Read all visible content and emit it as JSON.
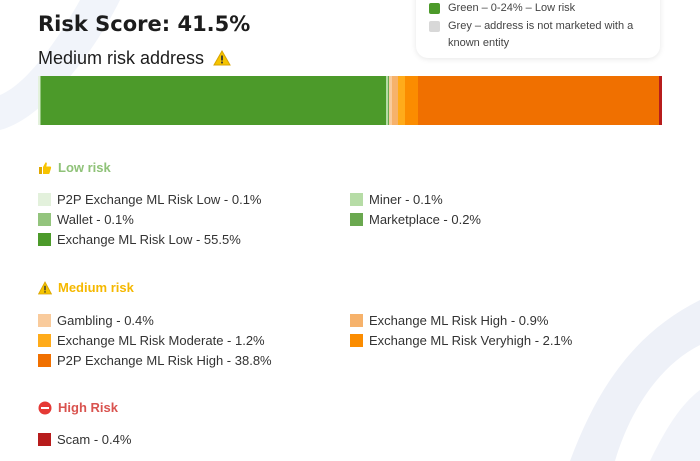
{
  "header": {
    "risk_score": "Risk Score: 41.5%",
    "risk_level": "Medium risk address"
  },
  "legend": [
    {
      "color": "#4c9a2a",
      "label": "Green – 0-24% – Low risk"
    },
    {
      "color": "#d8d8d8",
      "label": "Grey – address is not marketed with a known entity"
    }
  ],
  "risk_bar": [
    {
      "name": "P2P Exchange ML Risk Low",
      "percent": 0.1,
      "color": "#e3f1dc"
    },
    {
      "name": "Wallet",
      "percent": 0.1,
      "color": "#93c47d"
    },
    {
      "name": "Exchange ML Risk Low",
      "percent": 55.5,
      "color": "#4c9a2a"
    },
    {
      "name": "Miner",
      "percent": 0.1,
      "color": "#b6dca6"
    },
    {
      "name": "Marketplace",
      "percent": 0.2,
      "color": "#6aa84f"
    },
    {
      "name": "Gambling",
      "percent": 0.4,
      "color": "#f9cb9c"
    },
    {
      "name": "Exchange ML Risk High",
      "percent": 0.9,
      "color": "#f6b26b"
    },
    {
      "name": "Exchange ML Risk Moderate",
      "percent": 1.2,
      "color": "#ffab1a"
    },
    {
      "name": "Exchange ML Risk Veryhigh",
      "percent": 2.1,
      "color": "#fb8c00"
    },
    {
      "name": "P2P Exchange ML Risk High",
      "percent": 38.8,
      "color": "#f07000"
    },
    {
      "name": "Scam",
      "percent": 0.4,
      "color": "#b71c1c"
    }
  ],
  "sections": {
    "low": {
      "title": "Low risk",
      "color": "#8fc278",
      "items": [
        {
          "label": "P2P Exchange ML Risk Low - 0.1%",
          "color": "#e3f1dc"
        },
        {
          "label": "Miner - 0.1%",
          "color": "#b6dca6"
        },
        {
          "label": "Wallet - 0.1%",
          "color": "#93c47d"
        },
        {
          "label": "Marketplace - 0.2%",
          "color": "#6aa84f"
        },
        {
          "label": "Exchange ML Risk Low - 55.5%",
          "color": "#4c9a2a"
        }
      ]
    },
    "medium": {
      "title": "Medium risk",
      "color": "#f5b800",
      "items": [
        {
          "label": "Gambling - 0.4%",
          "color": "#f9cb9c"
        },
        {
          "label": "Exchange ML Risk High - 0.9%",
          "color": "#f6b26b"
        },
        {
          "label": "Exchange ML Risk Moderate - 1.2%",
          "color": "#ffab1a"
        },
        {
          "label": "Exchange ML Risk Veryhigh - 2.1%",
          "color": "#fb8c00"
        },
        {
          "label": "P2P Exchange ML Risk High - 38.8%",
          "color": "#f07000"
        }
      ]
    },
    "high": {
      "title": "High Risk",
      "color": "#d9534f",
      "items": [
        {
          "label": "Scam - 0.4%",
          "color": "#b71c1c"
        }
      ]
    }
  },
  "icons": {
    "warning": "warning-icon",
    "thumbs_up": "thumbs-up-icon",
    "no_entry": "no-entry-icon"
  }
}
